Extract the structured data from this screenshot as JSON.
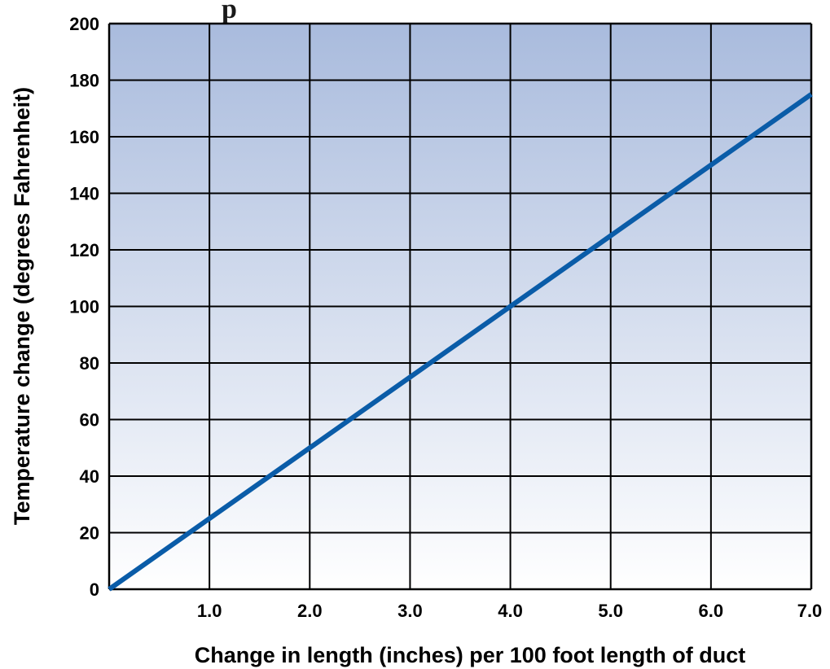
{
  "chart_data": {
    "type": "line",
    "title_fragment": "p",
    "xlabel": "Change in length (inches) per 100 foot length of duct",
    "ylabel": "Temperature change (degrees Fahrenheit)",
    "xlim": [
      0,
      7
    ],
    "ylim": [
      0,
      200
    ],
    "x_ticks": [
      "1.0",
      "2.0",
      "3.0",
      "4.0",
      "5.0",
      "6.0",
      "7.0"
    ],
    "y_ticks": [
      "0",
      "20",
      "40",
      "60",
      "80",
      "100",
      "120",
      "140",
      "160",
      "180",
      "200"
    ],
    "grid": true,
    "series": [
      {
        "x": [
          0,
          1,
          2,
          3,
          4,
          5,
          6,
          7
        ],
        "y": [
          0,
          25,
          50,
          75,
          100,
          125,
          150,
          175
        ]
      }
    ],
    "colors": {
      "line": "#0a5ca8",
      "bg_top": "#a9bbdd",
      "bg_bottom": "#ffffff",
      "grid": "#000000"
    }
  }
}
